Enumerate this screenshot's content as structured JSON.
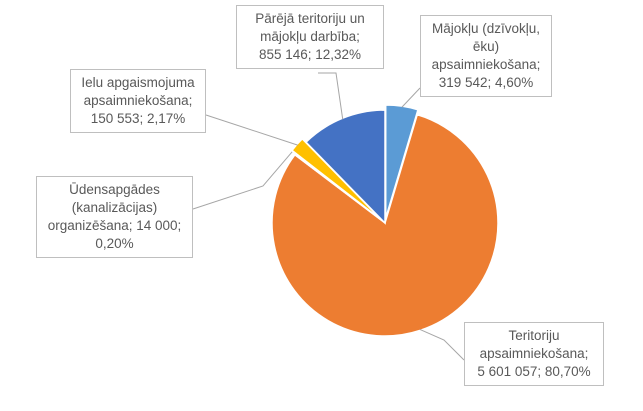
{
  "chart_data": {
    "type": "pie",
    "series": [
      {
        "name": "",
        "slices": [
          {
            "key": "majoklu",
            "label_lines": [
              "Mājokļu (dzīvokļu,",
              "ēku)",
              "apsaimniekošana;",
              "319 542; 4,60%"
            ],
            "value": 319542,
            "percent": 4.6,
            "color": "#5b9bd5"
          },
          {
            "key": "teritoriju",
            "label_lines": [
              "Teritoriju",
              "apsaimniekošana;",
              "5 601 057; 80,70%"
            ],
            "value": 5601057,
            "percent": 80.7,
            "color": "#ed7d31"
          },
          {
            "key": "udensapgades",
            "label_lines": [
              "Ūdensapgādes",
              "(kanalizācijas)",
              "organizēšana; 14 000;",
              "0,20%"
            ],
            "value": 14000,
            "percent": 0.2,
            "color": "#a5a5a5"
          },
          {
            "key": "ielu",
            "label_lines": [
              "Ielu apgaismojuma",
              "apsaimniekošana;",
              "150 553; 2,17%"
            ],
            "value": 150553,
            "percent": 2.17,
            "color": "#ffc000"
          },
          {
            "key": "pareja",
            "label_lines": [
              "Pārējā teritoriju un",
              "mājokļu darbība;",
              "855 146; 12,32%"
            ],
            "value": 855146,
            "percent": 12.32,
            "color": "#4472c4"
          }
        ]
      }
    ],
    "title": "",
    "legend": "none",
    "slice_border_color": "#ffffff"
  }
}
